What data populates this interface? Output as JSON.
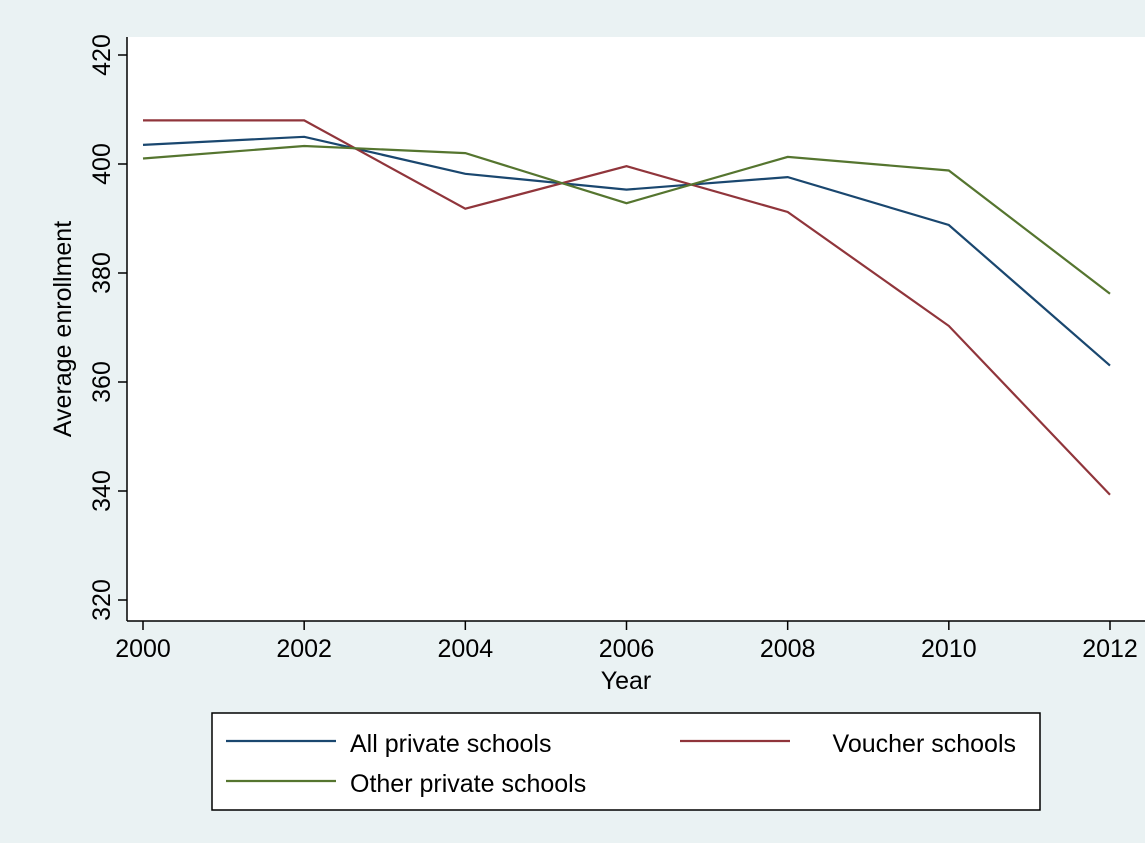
{
  "chart_data": {
    "type": "line",
    "title": "",
    "xlabel": "Year",
    "ylabel": "Average enrollment",
    "x": [
      2000,
      2002,
      2004,
      2006,
      2008,
      2010,
      2012
    ],
    "xlim": [
      2000,
      2012
    ],
    "ylim": [
      320,
      420
    ],
    "xticks": [
      2000,
      2002,
      2004,
      2006,
      2008,
      2010,
      2012
    ],
    "yticks": [
      320,
      340,
      360,
      380,
      400,
      420
    ],
    "grid": false,
    "legend_position": "bottom",
    "series": [
      {
        "name": "All private schools",
        "color": "#1a476f",
        "values": [
          403.5,
          405.0,
          398.2,
          395.3,
          397.6,
          388.8,
          363.0
        ]
      },
      {
        "name": "Voucher schools",
        "color": "#90353b",
        "values": [
          408.0,
          408.0,
          391.8,
          399.6,
          391.2,
          370.3,
          339.3
        ]
      },
      {
        "name": "Other private schools",
        "color": "#55752f",
        "values": [
          401.0,
          403.3,
          402.0,
          392.8,
          401.3,
          398.8,
          376.2
        ]
      }
    ]
  },
  "colors": {
    "background": "#eaf2f3",
    "plot_background": "#ffffff",
    "axis": "#000000"
  }
}
